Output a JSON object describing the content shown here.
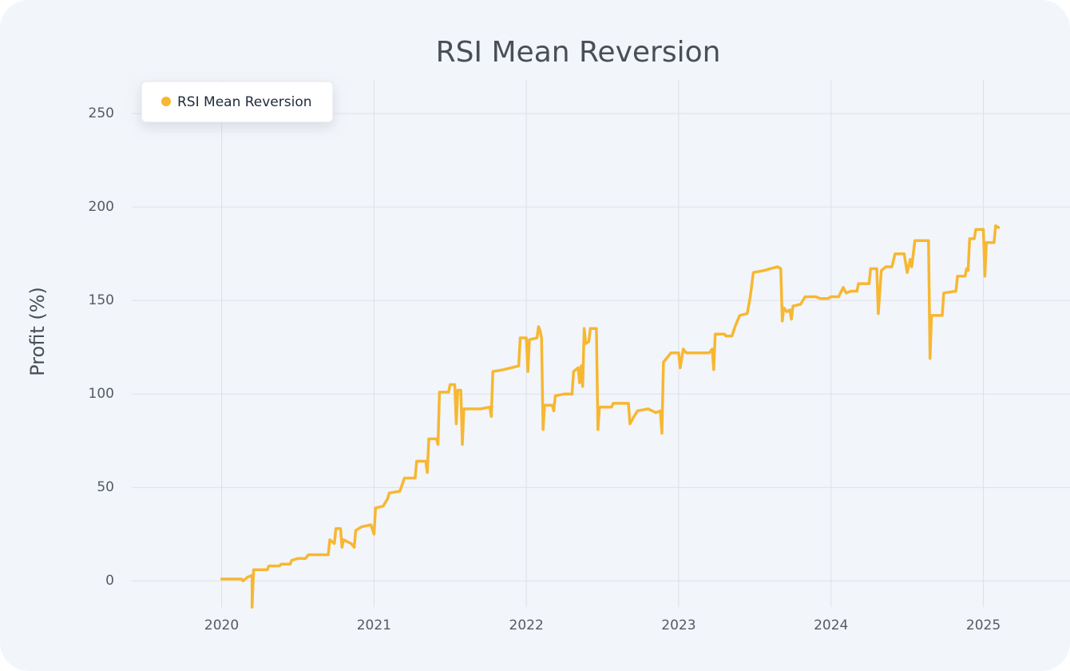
{
  "chart_data": {
    "type": "line",
    "title": "RSI Mean Reversion",
    "y_label": "Profit (%)",
    "legend": "top-left",
    "grid": true,
    "xlim": [
      2019.41,
      2025.49
    ],
    "xticks": [
      2020,
      2021,
      2022,
      2023,
      2024,
      2025
    ],
    "ylim": [
      -14,
      268
    ],
    "yticks": [
      0,
      50,
      100,
      150,
      200,
      250
    ],
    "x": [
      2020.0,
      2020.13,
      2020.14,
      2020.17,
      2020.2,
      2020.2,
      2020.21,
      2020.3,
      2020.31,
      2020.38,
      2020.39,
      2020.45,
      2020.46,
      2020.5,
      2020.55,
      2020.57,
      2020.7,
      2020.71,
      2020.74,
      2020.75,
      2020.78,
      2020.79,
      2020.8,
      2020.85,
      2020.87,
      2020.88,
      2020.92,
      2020.98,
      2021.0,
      2021.01,
      2021.06,
      2021.09,
      2021.1,
      2021.17,
      2021.2,
      2021.27,
      2021.28,
      2021.34,
      2021.35,
      2021.36,
      2021.41,
      2021.42,
      2021.43,
      2021.49,
      2021.5,
      2021.53,
      2021.54,
      2021.55,
      2021.57,
      2021.58,
      2021.59,
      2021.7,
      2021.76,
      2021.77,
      2021.78,
      2021.85,
      2021.95,
      2021.96,
      2022.0,
      2022.01,
      2022.02,
      2022.07,
      2022.08,
      2022.09,
      2022.1,
      2022.11,
      2022.12,
      2022.17,
      2022.18,
      2022.19,
      2022.25,
      2022.3,
      2022.31,
      2022.34,
      2022.35,
      2022.36,
      2022.37,
      2022.38,
      2022.39,
      2022.41,
      2022.42,
      2022.46,
      2022.47,
      2022.48,
      2022.56,
      2022.57,
      2022.67,
      2022.68,
      2022.7,
      2022.73,
      2022.8,
      2022.85,
      2022.88,
      2022.89,
      2022.9,
      2022.95,
      2023.0,
      2023.01,
      2023.03,
      2023.05,
      2023.2,
      2023.22,
      2023.23,
      2023.24,
      2023.3,
      2023.31,
      2023.35,
      2023.37,
      2023.4,
      2023.45,
      2023.47,
      2023.49,
      2023.56,
      2023.6,
      2023.65,
      2023.67,
      2023.68,
      2023.69,
      2023.71,
      2023.73,
      2023.74,
      2023.75,
      2023.8,
      2023.83,
      2023.9,
      2023.93,
      2023.98,
      2024.0,
      2024.05,
      2024.08,
      2024.1,
      2024.13,
      2024.17,
      2024.18,
      2024.25,
      2024.26,
      2024.3,
      2024.31,
      2024.33,
      2024.36,
      2024.4,
      2024.42,
      2024.48,
      2024.5,
      2024.52,
      2024.53,
      2024.55,
      2024.6,
      2024.64,
      2024.65,
      2024.66,
      2024.73,
      2024.74,
      2024.82,
      2024.83,
      2024.88,
      2024.89,
      2024.9,
      2024.91,
      2024.94,
      2024.95,
      2025.0,
      2025.01,
      2025.02,
      2025.07,
      2025.08,
      2025.1
    ],
    "series": [
      {
        "name": "RSI Mean Reversion",
        "color": "#f7b731",
        "values": [
          1,
          1,
          0,
          2,
          3,
          -14,
          6,
          6,
          8,
          8,
          9,
          9,
          11,
          12,
          12,
          14,
          14,
          22,
          20,
          28,
          28,
          18,
          22,
          20,
          18,
          27,
          29,
          30,
          25,
          39,
          40,
          44,
          47,
          48,
          55,
          55,
          64,
          64,
          58,
          76,
          76,
          73,
          101,
          101,
          105,
          105,
          84,
          102,
          102,
          73,
          92,
          92,
          93,
          88,
          112,
          113,
          115,
          130,
          130,
          112,
          129,
          130,
          136,
          134,
          130,
          81,
          94,
          94,
          91,
          99,
          100,
          100,
          112,
          114,
          106,
          115,
          104,
          135,
          127,
          128,
          135,
          135,
          81,
          93,
          93,
          95,
          95,
          84,
          87,
          91,
          92,
          90,
          91,
          79,
          117,
          122,
          122,
          114,
          124,
          122,
          122,
          124,
          113,
          132,
          132,
          131,
          131,
          136,
          142,
          143,
          152,
          165,
          166,
          167,
          168,
          167,
          139,
          146,
          144,
          145,
          140,
          147,
          148,
          152,
          152,
          151,
          151,
          152,
          152,
          157,
          154,
          155,
          155,
          159,
          159,
          167,
          167,
          143,
          166,
          168,
          168,
          175,
          175,
          165,
          172,
          168,
          182,
          182,
          182,
          119,
          142,
          142,
          154,
          155,
          163,
          163,
          167,
          166,
          183,
          183,
          188,
          188,
          163,
          181,
          181,
          190,
          189
        ]
      }
    ]
  }
}
